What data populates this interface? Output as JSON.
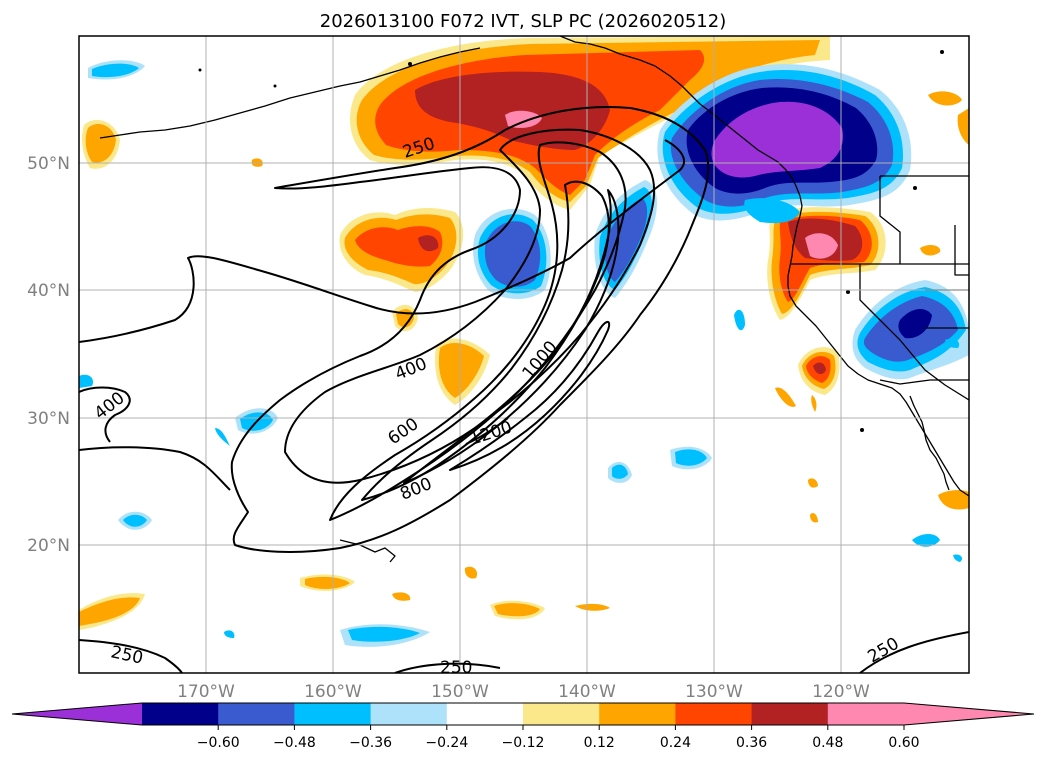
{
  "title": "2026013100 F072 IVT, SLP PC (2026020512)",
  "lon_labels": [
    "170°W",
    "160°W",
    "150°W",
    "140°W",
    "130°W",
    "120°W"
  ],
  "lat_labels": [
    "50°N",
    "40°N",
    "30°N",
    "20°N"
  ],
  "contour_labels": {
    "c250_a": "250",
    "c250_b": "250",
    "c250_c": "250",
    "c250_d": "250",
    "c400_a": "400",
    "c400_b": "400",
    "c600": "600",
    "c800": "800",
    "c1000": "1000",
    "c1200": "1200"
  },
  "colorbar": {
    "ticks": [
      "−0.60",
      "−0.48",
      "−0.36",
      "−0.24",
      "−0.12",
      "0.12",
      "0.24",
      "0.36",
      "0.48",
      "0.60"
    ],
    "colors": [
      "#9b30d8",
      "#00008b",
      "#3a5bd0",
      "#00bfff",
      "#ade2fa",
      "#ffffff",
      "#fbe88a",
      "#ffa500",
      "#ff4500",
      "#b22222",
      "#ff88b0",
      "#ff88b0"
    ]
  },
  "colors": {
    "neg_outer": "#ade2fa",
    "neg_2": "#00bfff",
    "neg_3": "#3a5bd0",
    "neg_4": "#00008b",
    "neg_5": "#9b30d8",
    "pos_outer": "#fbe88a",
    "pos_2": "#ffa500",
    "pos_3": "#ff4500",
    "pos_4": "#b22222",
    "pos_5": "#ff88b0"
  }
}
